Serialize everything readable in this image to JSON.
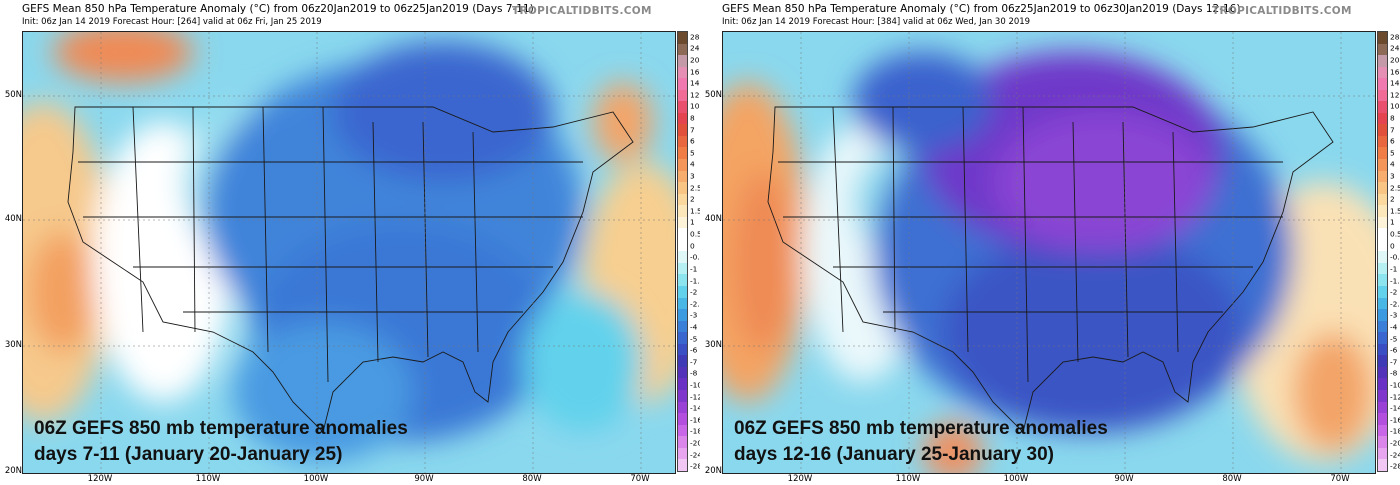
{
  "panels": [
    {
      "title": "GEFS Mean 850 hPa Temperature Anomaly (°C) from 06z20Jan2019 to 06z25Jan2019 (Days 7-11)",
      "subtitle": "Init: 06z Jan 14 2019   Forecast Hour: [264]   valid at 06z Fri, Jan 25 2019",
      "brand": "TROPICALTIDBITS.COM",
      "overlay_line1": "06Z GEFS 850 mb temperature anomalies",
      "overlay_line2": "days 7-11 (January 20-January 25)",
      "pattern": "moderate cold anomaly over central and eastern US, warm off the West Coast and Atlantic"
    },
    {
      "title": "GEFS Mean 850 hPa Temperature Anomaly (°C) from 06z25Jan2019 to 06z30Jan2019 (Days 12-16)",
      "subtitle": "Init: 06z Jan 14 2019   Forecast Hour: [384]   valid at 06z Wed, Jan 30 2019",
      "brand": "TROPICALTIDBITS.COM",
      "overlay_line1": "06Z GEFS 850 mb temperature anomalies",
      "overlay_line2": "days 12-16 (January 25-January 30)",
      "pattern": "strong cold anomaly centered on the Great Lakes and Midwest, warm along the West Coast"
    }
  ],
  "lat_labels": [
    "50N",
    "40N",
    "30N",
    "20N"
  ],
  "lon_labels": [
    "120W",
    "110W",
    "100W",
    "90W",
    "80W",
    "70W"
  ],
  "colorbar": {
    "ticks": [
      "28",
      "24",
      "20",
      "16",
      "14",
      "12",
      "10",
      "8",
      "7",
      "6",
      "5",
      "4",
      "3",
      "2.5",
      "2",
      "1.5",
      "1",
      "0.5",
      "0",
      "-0.5",
      "-1",
      "-1.5",
      "-2",
      "-2.5",
      "-3",
      "-4",
      "-5",
      "-6",
      "-7",
      "-8",
      "-10",
      "-12",
      "-14",
      "-16",
      "-18",
      "-20",
      "-24",
      "-28"
    ],
    "colors": [
      "#6b4a2e",
      "#8c6a55",
      "#c49aa8",
      "#e58fb5",
      "#f07ab0",
      "#f06b95",
      "#e8506d",
      "#e3444f",
      "#e0503a",
      "#e8673f",
      "#f07d46",
      "#f4965a",
      "#f7ad6e",
      "#f9c585",
      "#fbd89e",
      "#fce7bb",
      "#fdf3d8",
      "#ffffff",
      "#ffffff",
      "#dff7f7",
      "#b7f0f2",
      "#8be4ee",
      "#62d2ec",
      "#48b7e6",
      "#3c9be0",
      "#3a7fd8",
      "#3a66cf",
      "#3a4fc3",
      "#3f3bb7",
      "#5433bb",
      "#6a32c4",
      "#8038cc",
      "#9a42d6",
      "#b24fdf",
      "#c766e6",
      "#d985ea",
      "#e6a5ee",
      "#f1c8f3"
    ]
  },
  "colors": {
    "warm": "#f4a05c",
    "cold": "#3a66cf",
    "very_cold": "#8a3fd0"
  }
}
